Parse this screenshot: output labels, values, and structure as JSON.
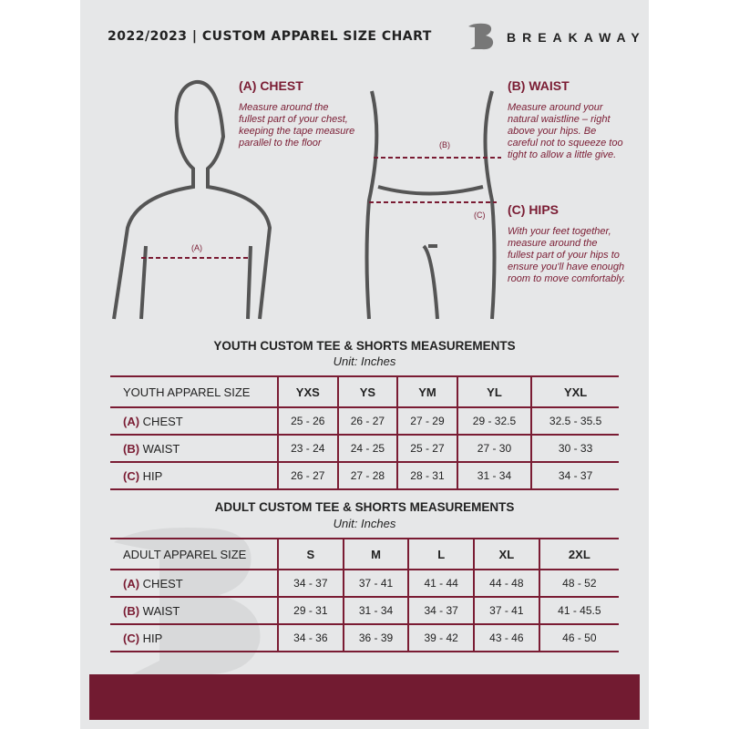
{
  "header": {
    "title": "2022/2023  |  CUSTOM APPAREL SIZE CHART",
    "brand": "BREAKAWAY",
    "logo": "B"
  },
  "guide": {
    "chest": {
      "title": "(A) CHEST",
      "text": "Measure around the fullest part of your chest, keeping the tape measure parallel to the floor",
      "marker": "(A)"
    },
    "waist": {
      "title": "(B) WAIST",
      "text": "Measure around your natural waistline – right above your hips. Be careful not to squeeze too tight to allow a little give.",
      "marker": "(B)"
    },
    "hips": {
      "title": "(C) HIPS",
      "text": "With your feet together, measure around the fullest part of your hips to ensure you'll have enough room to move comfortably.",
      "marker": "(C)"
    }
  },
  "accent": "#7a1c33",
  "youth": {
    "title": "YOUTH CUSTOM TEE & SHORTS MEASUREMENTS",
    "unit": "Unit: Inches",
    "header": [
      "YOUTH APPAREL SIZE",
      "YXS",
      "YS",
      "YM",
      "YL",
      "YXL"
    ],
    "rows": [
      {
        "code": "(A)",
        "label": "CHEST",
        "values": [
          "25 - 26",
          "26 - 27",
          "27 - 29",
          "29 - 32.5",
          "32.5 - 35.5"
        ]
      },
      {
        "code": "(B)",
        "label": "WAIST",
        "values": [
          "23 - 24",
          "24 - 25",
          "25 - 27",
          "27 - 30",
          "30 - 33"
        ]
      },
      {
        "code": "(C)",
        "label": "HIP",
        "values": [
          "26 - 27",
          "27 - 28",
          "28 - 31",
          "31 - 34",
          "34 - 37"
        ]
      }
    ]
  },
  "adult": {
    "title": "ADULT CUSTOM TEE & SHORTS MEASUREMENTS",
    "unit": "Unit: Inches",
    "header": [
      "ADULT APPAREL SIZE",
      "S",
      "M",
      "L",
      "XL",
      "2XL"
    ],
    "rows": [
      {
        "code": "(A)",
        "label": "CHEST",
        "values": [
          "34 - 37",
          "37 - 41",
          "41 - 44",
          "44 - 48",
          "48 - 52"
        ]
      },
      {
        "code": "(B)",
        "label": "WAIST",
        "values": [
          "29 - 31",
          "31 - 34",
          "34 - 37",
          "37 - 41",
          "41 - 45.5"
        ]
      },
      {
        "code": "(C)",
        "label": "HIP",
        "values": [
          "34 - 36",
          "36 - 39",
          "39 - 42",
          "43 - 46",
          "46 - 50"
        ]
      }
    ]
  }
}
